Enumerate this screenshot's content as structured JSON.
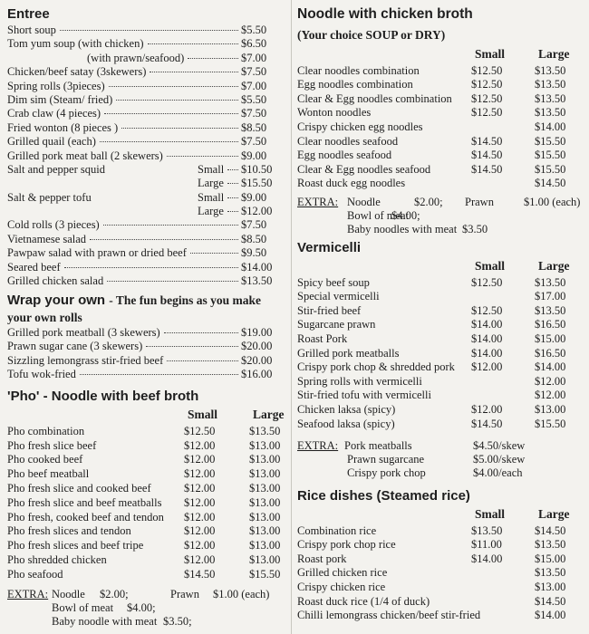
{
  "left": {
    "entree": {
      "title": "Entree",
      "items": [
        {
          "name": "Short soup",
          "price": "$5.50"
        },
        {
          "name": "Tom yum soup (with chicken)",
          "price": "$6.50"
        },
        {
          "sub": "(with prawn/seafood)",
          "price": "$7.00"
        },
        {
          "name": "Chicken/beef satay (3skewers)",
          "price": "$7.50"
        },
        {
          "name": "Spring rolls (3pieces)",
          "price": "$7.00"
        },
        {
          "name": "Dim sim (Steam/ fried)",
          "price": "$5.50"
        },
        {
          "name": "Crab claw (4 pieces)",
          "price": "$7.50"
        },
        {
          "name": "Fried wonton (8 pieces )",
          "price": "$8.50"
        },
        {
          "name": "Grilled quail (each)",
          "price": "$7.50"
        },
        {
          "name": "Grilled pork meat ball (2 skewers)",
          "price": "$9.00"
        },
        {
          "name": "Salt and pepper squid",
          "size": "Small",
          "price": "$10.50"
        },
        {
          "size": "Large",
          "price": "$15.50"
        },
        {
          "name": "Salt & pepper tofu",
          "size": "Small",
          "price": "$9.00"
        },
        {
          "size": "Large",
          "price": "$12.00"
        },
        {
          "name": "Cold rolls (3 pieces)",
          "price": "$7.50"
        },
        {
          "name": "Vietnamese salad",
          "price": "$8.50"
        },
        {
          "name": "Pawpaw salad with prawn or dried beef",
          "price": "$9.50"
        },
        {
          "name": "Seared beef",
          "price": "$14.00"
        },
        {
          "name": "Grilled chicken salad",
          "price": "$13.50"
        }
      ]
    },
    "wrap": {
      "title": "Wrap your own",
      "subtitle": "- The fun begins as you make your own rolls",
      "items": [
        {
          "name": "Grilled pork meatball (3 skewers)",
          "price": "$19.00"
        },
        {
          "name": "Prawn sugar cane (3 skewers)",
          "price": "$20.00"
        },
        {
          "name": "Sizzling lemongrass stir-fried beef",
          "price": "$20.00"
        },
        {
          "name": "Tofu wok-fried",
          "price": "$16.00"
        }
      ]
    },
    "pho": {
      "title": "'Pho' - Noodle with beef broth",
      "columns": [
        "Small",
        "Large"
      ],
      "items": [
        {
          "name": "Pho combination",
          "small": "$12.50",
          "large": "$13.50"
        },
        {
          "name": "Pho fresh slice beef",
          "small": "$12.00",
          "large": "$13.00"
        },
        {
          "name": "Pho cooked beef",
          "small": "$12.00",
          "large": "$13.00"
        },
        {
          "name": "Pho beef meatball",
          "small": "$12.00",
          "large": "$13.00"
        },
        {
          "name": "Pho fresh slice and cooked beef",
          "small": "$12.00",
          "large": "$13.00"
        },
        {
          "name": "Pho fresh slice and beef meatballs",
          "small": "$12.00",
          "large": "$13.00"
        },
        {
          "name": "Pho fresh, cooked beef and tendon",
          "small": "$12.00",
          "large": "$13.00"
        },
        {
          "name": "Pho fresh slices and tendon",
          "small": "$12.00",
          "large": "$13.00"
        },
        {
          "name": "Pho fresh slices and beef tripe",
          "small": "$12.00",
          "large": "$13.00"
        },
        {
          "name": "Pho shredded chicken",
          "small": "$12.00",
          "large": "$13.00"
        },
        {
          "name": "Pho seafood",
          "small": "$14.50",
          "large": "$15.50"
        }
      ],
      "extra": {
        "label": "EXTRA:",
        "lines": [
          [
            "Noodle",
            "$2.00;",
            "Prawn",
            "$1.00 (each)"
          ],
          [
            "Bowl of meat",
            "$4.00;"
          ],
          [
            "Baby noodle with meat",
            "$3.50;"
          ]
        ]
      }
    }
  },
  "right": {
    "noodle": {
      "title": "Noodle with chicken broth",
      "subtitle": "(Your choice SOUP or DRY)",
      "columns": [
        "Small",
        "Large"
      ],
      "items": [
        {
          "name": "Clear noodles combination",
          "small": "$12.50",
          "large": "$13.50"
        },
        {
          "name": "Egg noodles combination",
          "small": "$12.50",
          "large": "$13.50"
        },
        {
          "name": "Clear & Egg noodles combination",
          "small": "$12.50",
          "large": "$13.50"
        },
        {
          "name": "Wonton noodles",
          "small": "$12.50",
          "large": "$13.50"
        },
        {
          "name": "Crispy chicken egg noodles",
          "small": null,
          "large": "$14.00"
        },
        {
          "name": "Clear noodles seafood",
          "small": "$14.50",
          "large": "$15.50"
        },
        {
          "name": "Egg noodles seafood",
          "small": "$14.50",
          "large": "$15.50"
        },
        {
          "name": "Clear & Egg noodles seafood",
          "small": "$14.50",
          "large": "$15.50"
        },
        {
          "name": "Roast duck egg noodles",
          "small": null,
          "large": "$14.50"
        }
      ],
      "extra": {
        "label": "EXTRA:",
        "lines": [
          [
            "Noodle",
            "$2.00;",
            "Prawn",
            "$1.00 (each)"
          ],
          [
            "Bowl of meat",
            "$4.00;"
          ],
          [
            "Baby noodles with meat",
            "$3.50"
          ]
        ]
      }
    },
    "vermicelli": {
      "title": "Vermicelli",
      "columns": [
        "Small",
        "Large"
      ],
      "items": [
        {
          "name": "Spicy beef soup",
          "small": "$12.50",
          "large": "$13.50"
        },
        {
          "name": "Special vermicelli",
          "small": null,
          "large": "$17.00"
        },
        {
          "name": "Stir-fried beef",
          "small": "$12.50",
          "large": "$13.50"
        },
        {
          "name": "Sugarcane prawn",
          "small": "$14.00",
          "large": "$16.50"
        },
        {
          "name": "Roast Pork",
          "small": "$14.00",
          "large": "$15.00"
        },
        {
          "name": "Grilled pork meatballs",
          "small": "$14.00",
          "large": "$16.50"
        },
        {
          "name": "Crispy pork chop & shredded pork",
          "small": "$12.00",
          "large": "$14.00"
        },
        {
          "name": "Spring rolls with vermicelli",
          "small": null,
          "large": "$12.00"
        },
        {
          "name": "Stir-fried tofu with vermicelli",
          "small": null,
          "large": "$12.00"
        },
        {
          "name": "Chicken laksa (spicy)",
          "small": "$12.00",
          "large": "$13.00"
        },
        {
          "name": "Seafood laksa (spicy)",
          "small": "$14.50",
          "large": "$15.50"
        }
      ],
      "extra": {
        "label": "EXTRA:",
        "lines": [
          [
            "Pork meatballs",
            "$4.50/skew"
          ],
          [
            "Prawn sugarcane",
            "$5.00/skew"
          ],
          [
            "Crispy pork chop",
            "$4.00/each"
          ]
        ]
      }
    },
    "rice": {
      "title": "Rice dishes (Steamed rice)",
      "columns": [
        "Small",
        "Large"
      ],
      "items": [
        {
          "name": "Combination rice",
          "small": "$13.50",
          "large": "$14.50"
        },
        {
          "name": "Crispy pork chop rice",
          "small": "$11.00",
          "large": "$13.50"
        },
        {
          "name": "Roast pork",
          "small": "$14.00",
          "large": "$15.00"
        },
        {
          "name": "Grilled chicken rice",
          "small": null,
          "large": "$13.50"
        },
        {
          "name": "Crispy chicken rice",
          "small": null,
          "large": "$13.00"
        },
        {
          "name": "Roast duck rice (1/4 of duck)",
          "small": null,
          "large": "$14.50"
        },
        {
          "name": "Chilli lemongrass chicken/beef stir-fried",
          "small": null,
          "large": "$14.00"
        }
      ]
    }
  }
}
